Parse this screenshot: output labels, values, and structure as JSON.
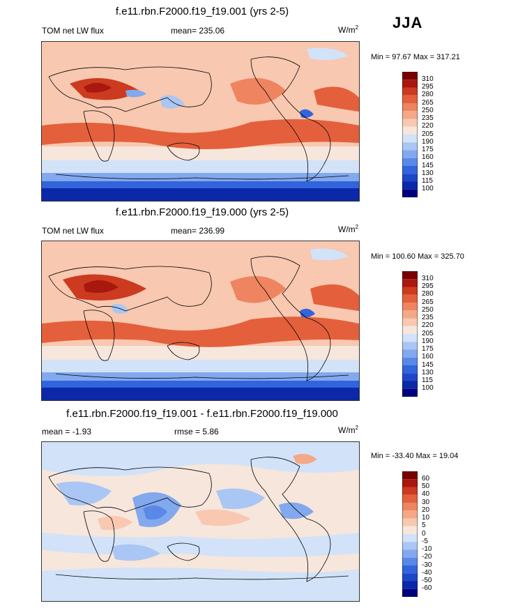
{
  "season": "JJA",
  "panels": [
    {
      "title": "f.e11.rbn.F2000.f19_f19.001 (yrs 2-5)",
      "left_label": "TOM net LW flux",
      "center_label": "mean= 235.06",
      "units": "W/m",
      "units_sup": "2",
      "minmax": "Min =  97.67 Max = 317.21",
      "colorbar_labels": [
        "310",
        "295",
        "280",
        "265",
        "250",
        "235",
        "220",
        "205",
        "190",
        "175",
        "160",
        "145",
        "130",
        "115",
        "100"
      ]
    },
    {
      "title": "f.e11.rbn.F2000.f19_f19.000 (yrs 2-5)",
      "left_label": "TOM net LW flux",
      "center_label": "mean= 236.99",
      "units": "W/m",
      "units_sup": "2",
      "minmax": "Min = 100.60 Max = 325.70",
      "colorbar_labels": [
        "310",
        "295",
        "280",
        "265",
        "250",
        "235",
        "220",
        "205",
        "190",
        "175",
        "160",
        "145",
        "130",
        "115",
        "100"
      ]
    },
    {
      "title": "f.e11.rbn.F2000.f19_f19.001 - f.e11.rbn.F2000.f19_f19.000",
      "left_label": "mean =  -1.93",
      "center_label": "rmse =   5.86",
      "units": "W/m",
      "units_sup": "2",
      "minmax": "Min = -33.40 Max =  19.04",
      "colorbar_labels": [
        "60",
        "50",
        "40",
        "30",
        "20",
        "10",
        "5",
        "0",
        "-5",
        "-10",
        "-20",
        "-30",
        "-40",
        "-50",
        "-60"
      ]
    }
  ],
  "chart_data": [
    {
      "type": "heatmap",
      "title": "f.e11.rbn.F2000.f19_f19.001 (yrs 2-5)",
      "levels": [
        100,
        115,
        130,
        145,
        160,
        175,
        190,
        205,
        220,
        235,
        250,
        265,
        280,
        295,
        310
      ],
      "colors": [
        "#00007f",
        "#0a28a8",
        "#1e46c8",
        "#3264dc",
        "#5a88e6",
        "#82a8ee",
        "#aac6f4",
        "#d2e2f8",
        "#f6e6dc",
        "#f8c8b0",
        "#f4a888",
        "#ee8460",
        "#e4603c",
        "#cc3a20",
        "#a8180e",
        "#7a0000"
      ],
      "mean": 235.06,
      "min": 97.67,
      "max": 317.21
    },
    {
      "type": "heatmap",
      "title": "f.e11.rbn.F2000.f19_f19.000 (yrs 2-5)",
      "levels": [
        100,
        115,
        130,
        145,
        160,
        175,
        190,
        205,
        220,
        235,
        250,
        265,
        280,
        295,
        310
      ],
      "colors": [
        "#00007f",
        "#0a28a8",
        "#1e46c8",
        "#3264dc",
        "#5a88e6",
        "#82a8ee",
        "#aac6f4",
        "#d2e2f8",
        "#f6e6dc",
        "#f8c8b0",
        "#f4a888",
        "#ee8460",
        "#e4603c",
        "#cc3a20",
        "#a8180e",
        "#7a0000"
      ],
      "mean": 236.99,
      "min": 100.6,
      "max": 325.7
    },
    {
      "type": "heatmap",
      "title": "f.e11.rbn.F2000.f19_f19.001 - f.e11.rbn.F2000.f19_f19.000",
      "levels": [
        -60,
        -50,
        -40,
        -30,
        -20,
        -10,
        -5,
        0,
        5,
        10,
        20,
        30,
        40,
        50,
        60
      ],
      "colors": [
        "#00007f",
        "#0a28a8",
        "#1e46c8",
        "#3264dc",
        "#5a88e6",
        "#82a8ee",
        "#aac6f4",
        "#d2e2f8",
        "#f6e6dc",
        "#f8c8b0",
        "#f4a888",
        "#ee8460",
        "#e4603c",
        "#cc3a20",
        "#a8180e",
        "#7a0000"
      ],
      "mean": -1.93,
      "rmse": 5.86,
      "min": -33.4,
      "max": 19.04
    }
  ]
}
